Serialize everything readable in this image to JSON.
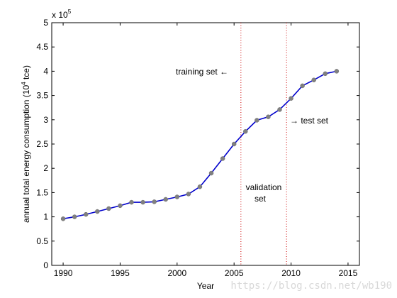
{
  "chart_data": {
    "type": "line",
    "xlabel": "Year",
    "ylabel_main": "annual total energy consumption (10",
    "ylabel_sup": "4",
    "ylabel_tail": " tce)",
    "exponent_base": "x 10",
    "exponent_power": "5",
    "xlim": [
      1989,
      2016
    ],
    "ylim": [
      0,
      500000
    ],
    "grid": false,
    "x_ticks": [
      1990,
      1995,
      2000,
      2005,
      2010,
      2015
    ],
    "y_ticks": [
      0,
      50000,
      100000,
      150000,
      200000,
      250000,
      300000,
      350000,
      400000,
      450000,
      500000
    ],
    "y_tick_labels": [
      "0",
      "0.5",
      "1",
      "1.5",
      "2",
      "2.5",
      "3",
      "3.5",
      "4",
      "4.5",
      "5"
    ],
    "series": [
      {
        "line_color": "#0000cc",
        "marker_color": "#808080",
        "x": [
          1990,
          1991,
          1992,
          1993,
          1994,
          1995,
          1996,
          1997,
          1998,
          1999,
          2000,
          2001,
          2002,
          2003,
          2004,
          2005,
          2006,
          2007,
          2008,
          2009,
          2010,
          2011,
          2012,
          2013,
          2014
        ],
        "y": [
          96000,
          100000,
          105000,
          111000,
          117000,
          123000,
          130000,
          130000,
          131000,
          136000,
          141000,
          147000,
          162000,
          190000,
          220000,
          250000,
          276000,
          299000,
          306000,
          321000,
          344000,
          370000,
          382000,
          395000,
          400000
        ]
      }
    ],
    "split_lines": {
      "color": "#cc0000",
      "x": [
        2005.6,
        2009.6
      ]
    },
    "annotations": {
      "training": "training set ←",
      "validation_line1": "validation",
      "validation_line2": "set",
      "test": "→ test set"
    }
  },
  "watermark": "https://blog.csdn.net/wb190"
}
